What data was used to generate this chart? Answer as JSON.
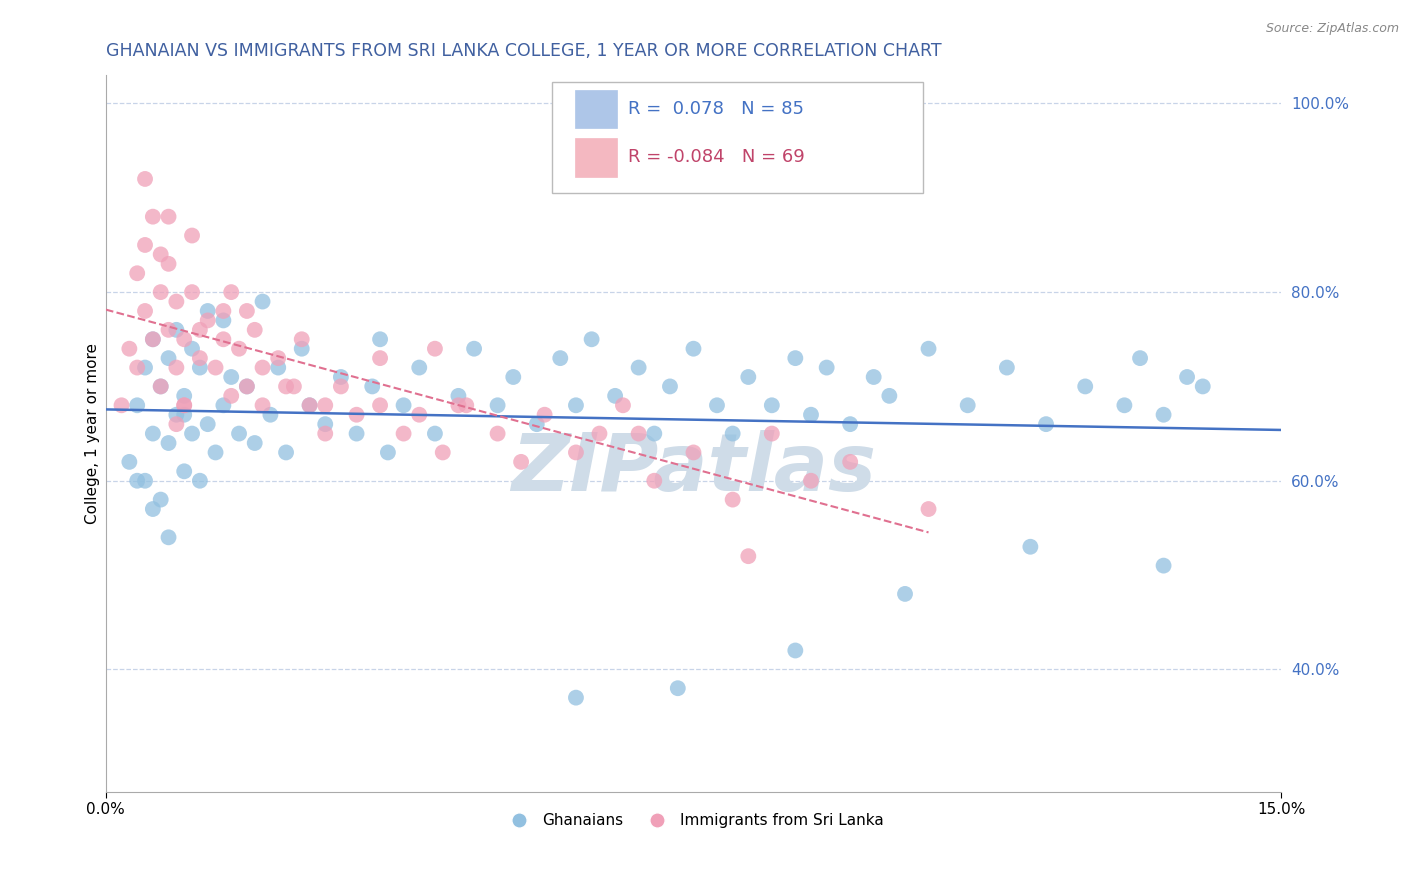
{
  "title": "GHANAIAN VS IMMIGRANTS FROM SRI LANKA COLLEGE, 1 YEAR OR MORE CORRELATION CHART",
  "source_text": "Source: ZipAtlas.com",
  "ylabel": "College, 1 year or more",
  "xlim": [
    0.0,
    15.0
  ],
  "ylim": [
    27.0,
    103.0
  ],
  "ytick_values": [
    40.0,
    60.0,
    80.0,
    100.0
  ],
  "xtick_values": [
    0.0,
    15.0
  ],
  "legend_entries": [
    {
      "label": "R =  0.078   N = 85",
      "patch_color": "#aec6e8",
      "text_color": "#4472c4"
    },
    {
      "label": "R = -0.084   N = 69",
      "patch_color": "#f4b8c1",
      "text_color": "#c0446a"
    }
  ],
  "watermark": "ZIPatlas",
  "watermark_color": "#cfdce8",
  "ghanaian_color": "#92c0e0",
  "srilanka_color": "#f0a0b8",
  "ghanaian_line_color": "#4472c4",
  "srilanka_line_color": "#e07090",
  "R_ghanaian": 0.078,
  "N_ghanaian": 85,
  "R_srilanka": -0.084,
  "N_srilanka": 69,
  "background_color": "#ffffff",
  "grid_color": "#c8d4e8",
  "title_color": "#4060a0",
  "title_fontsize": 12.5,
  "axis_label_fontsize": 11,
  "tick_fontsize": 11,
  "legend_fontsize": 13,
  "ghanaian_x": [
    0.3,
    0.4,
    0.5,
    0.5,
    0.6,
    0.6,
    0.7,
    0.7,
    0.8,
    0.8,
    0.9,
    0.9,
    1.0,
    1.0,
    1.1,
    1.1,
    1.2,
    1.2,
    1.3,
    1.3,
    1.4,
    1.5,
    1.5,
    1.6,
    1.7,
    1.8,
    1.9,
    2.0,
    2.1,
    2.2,
    2.3,
    2.5,
    2.6,
    2.8,
    3.0,
    3.2,
    3.4,
    3.5,
    3.6,
    3.8,
    4.0,
    4.2,
    4.5,
    4.7,
    5.0,
    5.2,
    5.5,
    5.8,
    6.0,
    6.2,
    6.5,
    6.8,
    7.0,
    7.2,
    7.5,
    7.8,
    8.0,
    8.2,
    8.5,
    8.8,
    9.0,
    9.2,
    9.5,
    9.8,
    10.0,
    10.5,
    11.0,
    11.5,
    12.0,
    12.5,
    13.0,
    13.2,
    13.5,
    13.8,
    14.0,
    6.0,
    7.3,
    8.8,
    10.2,
    11.8,
    13.5,
    0.4,
    0.6,
    0.8,
    1.0
  ],
  "ghanaian_y": [
    62,
    68,
    60,
    72,
    65,
    75,
    58,
    70,
    64,
    73,
    67,
    76,
    61,
    69,
    65,
    74,
    60,
    72,
    66,
    78,
    63,
    68,
    77,
    71,
    65,
    70,
    64,
    79,
    67,
    72,
    63,
    74,
    68,
    66,
    71,
    65,
    70,
    75,
    63,
    68,
    72,
    65,
    69,
    74,
    68,
    71,
    66,
    73,
    68,
    75,
    69,
    72,
    65,
    70,
    74,
    68,
    65,
    71,
    68,
    73,
    67,
    72,
    66,
    71,
    69,
    74,
    68,
    72,
    66,
    70,
    68,
    73,
    67,
    71,
    70,
    37,
    38,
    42,
    48,
    53,
    51,
    60,
    57,
    54,
    67
  ],
  "srilanka_x": [
    0.2,
    0.3,
    0.4,
    0.4,
    0.5,
    0.5,
    0.6,
    0.6,
    0.7,
    0.7,
    0.8,
    0.8,
    0.9,
    0.9,
    1.0,
    1.0,
    1.1,
    1.1,
    1.2,
    1.3,
    1.4,
    1.5,
    1.6,
    1.7,
    1.8,
    1.9,
    2.0,
    2.2,
    2.4,
    2.6,
    2.8,
    3.0,
    3.2,
    3.5,
    3.8,
    4.0,
    4.3,
    4.6,
    5.0,
    5.3,
    5.6,
    6.0,
    6.3,
    6.6,
    7.0,
    7.5,
    8.0,
    8.5,
    9.0,
    9.5,
    10.5,
    3.5,
    1.0,
    0.5,
    0.8,
    1.5,
    2.0,
    2.5,
    1.2,
    0.7,
    1.8,
    2.3,
    4.5,
    6.8,
    8.2,
    4.2,
    2.8,
    1.6,
    0.9
  ],
  "srilanka_y": [
    68,
    74,
    82,
    72,
    78,
    85,
    75,
    88,
    70,
    80,
    76,
    83,
    72,
    79,
    68,
    75,
    80,
    86,
    73,
    77,
    72,
    75,
    69,
    74,
    70,
    76,
    68,
    73,
    70,
    68,
    65,
    70,
    67,
    68,
    65,
    67,
    63,
    68,
    65,
    62,
    67,
    63,
    65,
    68,
    60,
    63,
    58,
    65,
    60,
    62,
    57,
    73,
    68,
    92,
    88,
    78,
    72,
    75,
    76,
    84,
    78,
    70,
    68,
    65,
    52,
    74,
    68,
    80,
    66
  ]
}
